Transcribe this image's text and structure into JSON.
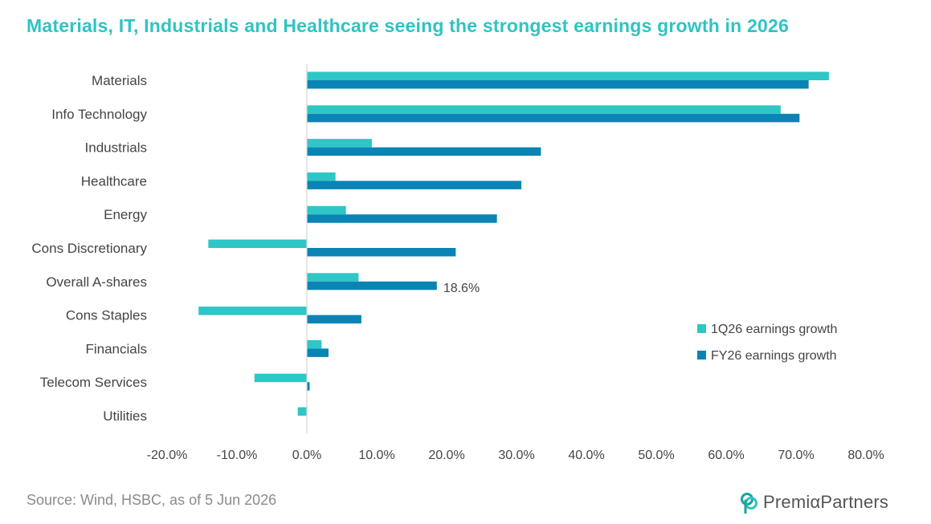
{
  "title": "Materials, IT, Industrials and Healthcare seeing the strongest earnings growth in 2026",
  "source": "Source: Wind, HSBC, as of 5 Jun 2026",
  "logo": {
    "brand": "PremiαPartners",
    "mark_icon": "premia-partners-logo-icon"
  },
  "colors": {
    "title": "#2ec4c4",
    "series_1q26": "#2ec6c6",
    "series_fy26": "#0a84b4",
    "axis": "#d6d6d6",
    "text": "#444444"
  },
  "chart_data": {
    "type": "bar",
    "orientation": "horizontal",
    "title": "Materials, IT, Industrials and Healthcare seeing the strongest earnings growth in 2026",
    "xlabel": "",
    "ylabel": "",
    "xlim": [
      -20,
      80
    ],
    "ticks": [
      "-20.0%",
      "-10.0%",
      "0.0%",
      "10.0%",
      "20.0%",
      "30.0%",
      "40.0%",
      "50.0%",
      "60.0%",
      "70.0%",
      "80.0%"
    ],
    "tick_values": [
      -20,
      -10,
      0,
      10,
      20,
      30,
      40,
      50,
      60,
      70,
      80
    ],
    "grid": false,
    "legend_position": "right",
    "categories": [
      "Materials",
      "Info Technology",
      "Industrials",
      "Healthcare",
      "Energy",
      "Cons Discretionary",
      "Overall A-shares",
      "Cons Staples",
      "Financials",
      "Telecom Services",
      "Utilities"
    ],
    "series": [
      {
        "name": "1Q26 earnings growth",
        "values": [
          74.7,
          67.8,
          9.3,
          4.1,
          5.6,
          -14.1,
          7.4,
          -15.5,
          2.1,
          -7.5,
          -1.3
        ]
      },
      {
        "name": "FY26 earnings growth",
        "values": [
          71.8,
          70.5,
          33.5,
          30.7,
          27.2,
          21.3,
          18.6,
          7.8,
          3.1,
          0.4,
          0
        ]
      }
    ],
    "annotations": [
      {
        "category": "Overall A-shares",
        "series": "FY26 earnings growth",
        "text": "18.6%"
      }
    ]
  }
}
